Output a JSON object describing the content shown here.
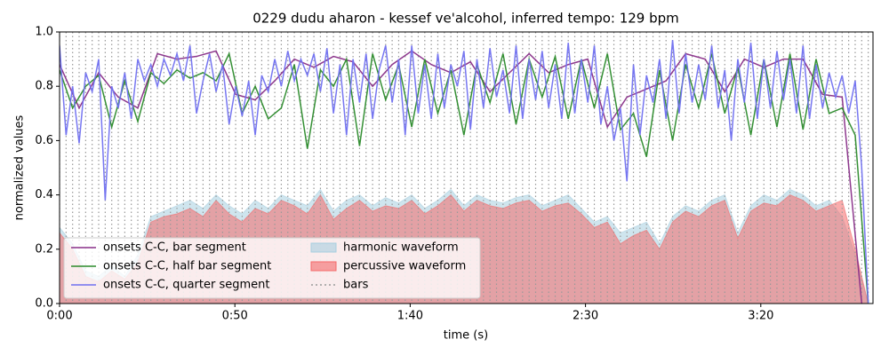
{
  "chart_data": {
    "type": "line",
    "title": "0229 dudu aharon - kessef ve'alcohol, inferred tempo: 129 bpm",
    "x_label": "time (s)",
    "y_label": "normalized values",
    "xlim": [
      0,
      232
    ],
    "ylim": [
      0,
      1
    ],
    "xticks": [
      {
        "value": 0,
        "label": "0:00"
      },
      {
        "value": 50,
        "label": "0:50"
      },
      {
        "value": 100,
        "label": "1:40"
      },
      {
        "value": 150,
        "label": "2:30"
      },
      {
        "value": 200,
        "label": "3:20"
      }
    ],
    "yticks": [
      {
        "value": 0,
        "label": "0.0"
      },
      0.2,
      0.4,
      0.6,
      0.8,
      {
        "value": 1,
        "label": "1.0"
      }
    ],
    "legend": "lower left",
    "series": [
      {
        "name": "onsets C-C, bar segment",
        "kind": "line",
        "color": "#882e88",
        "x": [
          0,
          5.58,
          11.16,
          16.74,
          22.32,
          27.9,
          33.48,
          39.06,
          44.64,
          50.22,
          55.8,
          61.38,
          66.96,
          72.54,
          78.12,
          83.7,
          89.28,
          94.86,
          100.44,
          106.02,
          111.6,
          117.18,
          122.76,
          128.34,
          133.92,
          139.5,
          145.08,
          150.66,
          156.24,
          161.82,
          167.4,
          172.98,
          178.56,
          184.14,
          189.72,
          195.3,
          200.88,
          206.46,
          212.04,
          217.62,
          223.2,
          228.78
        ],
        "values": [
          0.88,
          0.72,
          0.85,
          0.76,
          0.72,
          0.92,
          0.9,
          0.91,
          0.93,
          0.77,
          0.75,
          0.82,
          0.9,
          0.87,
          0.91,
          0.89,
          0.8,
          0.88,
          0.93,
          0.88,
          0.85,
          0.89,
          0.78,
          0.85,
          0.92,
          0.85,
          0.88,
          0.9,
          0.65,
          0.76,
          0.79,
          0.82,
          0.92,
          0.9,
          0.78,
          0.9,
          0.87,
          0.9,
          0.9,
          0.77,
          0.76,
          0
        ]
      },
      {
        "name": "onsets C-C, half bar segment",
        "kind": "line",
        "color": "#2a8a2a",
        "x": [
          0,
          3.72,
          7.44,
          11.16,
          14.88,
          18.6,
          22.32,
          26.04,
          29.76,
          33.48,
          37.2,
          40.92,
          44.64,
          48.36,
          52.08,
          55.8,
          59.52,
          63.24,
          66.96,
          70.68,
          74.4,
          78.12,
          81.84,
          85.56,
          89.28,
          93,
          96.72,
          100.44,
          104.16,
          107.88,
          111.6,
          115.32,
          119.04,
          122.76,
          126.48,
          130.2,
          133.92,
          137.64,
          141.36,
          145.08,
          148.8,
          152.52,
          156.24,
          159.96,
          163.68,
          167.4,
          171.12,
          174.84,
          178.56,
          182.28,
          186,
          189.72,
          193.44,
          197.16,
          200.88,
          204.6,
          208.32,
          212.04,
          215.76,
          219.48,
          223.2,
          226.92,
          230.64
        ],
        "values": [
          0.86,
          0.72,
          0.8,
          0.84,
          0.65,
          0.82,
          0.67,
          0.85,
          0.81,
          0.86,
          0.83,
          0.85,
          0.82,
          0.92,
          0.7,
          0.8,
          0.68,
          0.72,
          0.88,
          0.57,
          0.86,
          0.8,
          0.9,
          0.58,
          0.92,
          0.75,
          0.88,
          0.65,
          0.9,
          0.7,
          0.86,
          0.62,
          0.88,
          0.74,
          0.92,
          0.66,
          0.9,
          0.76,
          0.91,
          0.68,
          0.9,
          0.72,
          0.92,
          0.64,
          0.7,
          0.54,
          0.86,
          0.6,
          0.88,
          0.72,
          0.92,
          0.7,
          0.87,
          0.62,
          0.9,
          0.65,
          0.92,
          0.64,
          0.9,
          0.7,
          0.72,
          0.62,
          0
        ]
      },
      {
        "name": "onsets C-C, quarter segment",
        "kind": "line",
        "color": "#7070f0",
        "x": [
          0,
          1.86,
          3.72,
          5.58,
          7.44,
          9.3,
          11.16,
          13.02,
          14.88,
          16.74,
          18.6,
          20.46,
          22.32,
          24.18,
          26.04,
          27.9,
          29.76,
          31.62,
          33.48,
          35.34,
          37.2,
          39.06,
          40.92,
          42.78,
          44.64,
          46.5,
          48.36,
          50.22,
          52.08,
          53.94,
          55.8,
          57.66,
          59.52,
          61.38,
          63.24,
          65.1,
          66.96,
          68.82,
          70.68,
          72.54,
          74.4,
          76.26,
          78.12,
          79.98,
          81.84,
          83.7,
          85.56,
          87.42,
          89.28,
          91.14,
          93,
          94.86,
          96.72,
          98.58,
          100.44,
          102.3,
          104.16,
          106.02,
          107.88,
          109.74,
          111.6,
          113.46,
          115.32,
          117.18,
          119.04,
          120.9,
          122.76,
          124.62,
          126.48,
          128.34,
          130.2,
          132.06,
          133.92,
          135.78,
          137.64,
          139.5,
          141.36,
          143.22,
          145.08,
          146.94,
          148.8,
          150.66,
          152.52,
          154.38,
          156.24,
          158.1,
          159.96,
          161.82,
          163.68,
          165.54,
          167.4,
          169.26,
          171.12,
          172.98,
          174.84,
          176.7,
          178.56,
          180.42,
          182.28,
          184.14,
          186,
          187.86,
          189.72,
          191.58,
          193.44,
          195.3,
          197.16,
          199.02,
          200.88,
          202.74,
          204.6,
          206.46,
          208.32,
          210.18,
          212.04,
          213.9,
          215.76,
          217.62,
          219.48,
          221.34,
          223.2,
          225.06,
          226.92,
          228.78,
          230.64
        ],
        "values": [
          0.95,
          0.62,
          0.8,
          0.59,
          0.85,
          0.78,
          0.9,
          0.38,
          0.8,
          0.72,
          0.85,
          0.68,
          0.9,
          0.82,
          0.88,
          0.8,
          0.9,
          0.84,
          0.92,
          0.82,
          0.95,
          0.7,
          0.82,
          0.92,
          0.78,
          0.88,
          0.66,
          0.8,
          0.69,
          0.82,
          0.62,
          0.84,
          0.78,
          0.9,
          0.8,
          0.93,
          0.82,
          0.9,
          0.84,
          0.92,
          0.78,
          0.94,
          0.7,
          0.88,
          0.62,
          0.9,
          0.74,
          0.92,
          0.68,
          0.86,
          0.95,
          0.74,
          0.9,
          0.62,
          0.95,
          0.7,
          0.88,
          0.68,
          0.92,
          0.72,
          0.88,
          0.8,
          0.93,
          0.64,
          0.9,
          0.72,
          0.94,
          0.76,
          0.86,
          0.7,
          0.95,
          0.68,
          0.9,
          0.75,
          0.93,
          0.72,
          0.88,
          0.68,
          0.96,
          0.7,
          0.9,
          0.74,
          0.95,
          0.66,
          0.8,
          0.6,
          0.72,
          0.45,
          0.88,
          0.62,
          0.84,
          0.74,
          0.9,
          0.68,
          0.97,
          0.7,
          0.92,
          0.74,
          0.88,
          0.75,
          0.95,
          0.72,
          0.86,
          0.6,
          0.9,
          0.74,
          0.96,
          0.68,
          0.9,
          0.72,
          0.93,
          0.75,
          0.9,
          0.7,
          0.95,
          0.68,
          0.88,
          0.72,
          0.85,
          0.76,
          0.84,
          0.7,
          0.82,
          0.5,
          0
        ]
      },
      {
        "name": "harmonic waveform",
        "kind": "area",
        "color": "#a8cfe0",
        "x": [
          0,
          3.72,
          7.44,
          11.16,
          14.88,
          18.6,
          22.32,
          26.04,
          29.76,
          33.48,
          37.2,
          40.92,
          44.64,
          48.36,
          52.08,
          55.8,
          59.52,
          63.24,
          66.96,
          70.68,
          74.4,
          78.12,
          81.84,
          85.56,
          89.28,
          93,
          96.72,
          100.44,
          104.16,
          107.88,
          111.6,
          115.32,
          119.04,
          122.76,
          126.48,
          130.2,
          133.92,
          137.64,
          141.36,
          145.08,
          148.8,
          152.52,
          156.24,
          159.96,
          163.68,
          167.4,
          171.12,
          174.84,
          178.56,
          182.28,
          186,
          189.72,
          193.44,
          197.16,
          200.88,
          204.6,
          208.32,
          212.04,
          215.76,
          219.48,
          223.2,
          226.92,
          230.64
        ],
        "values": [
          0.28,
          0.22,
          0.12,
          0.1,
          0.14,
          0.1,
          0.18,
          0.32,
          0.34,
          0.36,
          0.38,
          0.35,
          0.4,
          0.36,
          0.33,
          0.38,
          0.35,
          0.4,
          0.38,
          0.36,
          0.42,
          0.34,
          0.38,
          0.4,
          0.36,
          0.39,
          0.37,
          0.4,
          0.35,
          0.38,
          0.42,
          0.36,
          0.4,
          0.38,
          0.37,
          0.39,
          0.4,
          0.36,
          0.38,
          0.4,
          0.35,
          0.3,
          0.32,
          0.26,
          0.28,
          0.3,
          0.22,
          0.32,
          0.36,
          0.34,
          0.38,
          0.4,
          0.26,
          0.36,
          0.4,
          0.38,
          0.42,
          0.4,
          0.36,
          0.38,
          0.32,
          0.18,
          0
        ]
      },
      {
        "name": "percussive waveform",
        "kind": "area",
        "color": "#f46a6a",
        "x": [
          0,
          3.72,
          7.44,
          11.16,
          14.88,
          18.6,
          22.32,
          26.04,
          29.76,
          33.48,
          37.2,
          40.92,
          44.64,
          48.36,
          52.08,
          55.8,
          59.52,
          63.24,
          66.96,
          70.68,
          74.4,
          78.12,
          81.84,
          85.56,
          89.28,
          93,
          96.72,
          100.44,
          104.16,
          107.88,
          111.6,
          115.32,
          119.04,
          122.76,
          126.48,
          130.2,
          133.92,
          137.64,
          141.36,
          145.08,
          148.8,
          152.52,
          156.24,
          159.96,
          163.68,
          167.4,
          171.12,
          174.84,
          178.56,
          182.28,
          186,
          189.72,
          193.44,
          197.16,
          200.88,
          204.6,
          208.32,
          212.04,
          215.76,
          219.48,
          223.2,
          226.92,
          230.64
        ],
        "values": [
          0.26,
          0.2,
          0.1,
          0.08,
          0.12,
          0.09,
          0.15,
          0.3,
          0.32,
          0.33,
          0.35,
          0.32,
          0.38,
          0.33,
          0.3,
          0.35,
          0.33,
          0.38,
          0.36,
          0.33,
          0.4,
          0.31,
          0.35,
          0.38,
          0.34,
          0.36,
          0.35,
          0.38,
          0.33,
          0.36,
          0.4,
          0.34,
          0.38,
          0.36,
          0.35,
          0.37,
          0.38,
          0.34,
          0.36,
          0.37,
          0.33,
          0.28,
          0.3,
          0.22,
          0.25,
          0.27,
          0.2,
          0.3,
          0.34,
          0.32,
          0.36,
          0.38,
          0.24,
          0.34,
          0.37,
          0.36,
          0.4,
          0.38,
          0.34,
          0.36,
          0.38,
          0.2,
          0
        ]
      },
      {
        "name": "bars",
        "kind": "vlines",
        "color": "#999999",
        "x": [
          0,
          1.86,
          3.72,
          5.58,
          7.44,
          9.3,
          11.16,
          13.02,
          14.88,
          16.74,
          18.6,
          20.46,
          22.32,
          24.18,
          26.04,
          27.9,
          29.76,
          31.62,
          33.48,
          35.34,
          37.2,
          39.06,
          40.92,
          42.78,
          44.64,
          46.5,
          48.36,
          50.22,
          52.08,
          53.94,
          55.8,
          57.66,
          59.52,
          61.38,
          63.24,
          65.1,
          66.96,
          68.82,
          70.68,
          72.54,
          74.4,
          76.26,
          78.12,
          79.98,
          81.84,
          83.7,
          85.56,
          87.42,
          89.28,
          91.14,
          93,
          94.86,
          96.72,
          98.58,
          100.44,
          102.3,
          104.16,
          106.02,
          107.88,
          109.74,
          111.6,
          113.46,
          115.32,
          117.18,
          119.04,
          120.9,
          122.76,
          124.62,
          126.48,
          128.34,
          130.2,
          132.06,
          133.92,
          135.78,
          137.64,
          139.5,
          141.36,
          143.22,
          145.08,
          146.94,
          148.8,
          150.66,
          152.52,
          154.38,
          156.24,
          158.1,
          159.96,
          161.82,
          163.68,
          165.54,
          167.4,
          169.26,
          171.12,
          172.98,
          174.84,
          176.7,
          178.56,
          180.42,
          182.28,
          184.14,
          186,
          187.86,
          189.72,
          191.58,
          193.44,
          195.3,
          197.16,
          199.02,
          200.88,
          202.74,
          204.6,
          206.46,
          208.32,
          210.18,
          212.04,
          213.9,
          215.76,
          217.62,
          219.48,
          221.34,
          223.2,
          225.06,
          226.92,
          228.78,
          230.64
        ]
      }
    ]
  }
}
